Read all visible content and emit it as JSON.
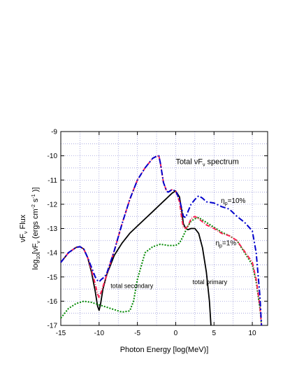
{
  "chart_data": {
    "type": "line",
    "xlabel": "Photon Energy [log(MeV)]",
    "ylabel_line1": "νF",
    "ylabel_line1_sub": "ν",
    "ylabel_line1_tail": " Flux",
    "ylabel_line2": "log",
    "ylabel_line2_sub": "10",
    "ylabel_line2_tail": "[νF",
    "ylabel_line2_sub2": "ν",
    "ylabel_line2_unit": "  (ergs cm",
    "ylabel_line2_sup1": "-2",
    "ylabel_line2_s": " s",
    "ylabel_line2_sup2": "-1",
    "ylabel_line2_close": " )]",
    "xlim": [
      -15,
      12
    ],
    "ylim": [
      -17,
      -9
    ],
    "xticks": [
      -15,
      -10,
      -5,
      0,
      5,
      10
    ],
    "yticks": [
      -17,
      -16,
      -15,
      -14,
      -13,
      -12,
      -11,
      -10,
      -9
    ],
    "grid": true,
    "annotations": {
      "total_spectrum": {
        "text": "Total νF",
        "sub": "ν",
        "tail": " spectrum",
        "x": 0,
        "y": -10.35
      },
      "eta10": {
        "text": "η",
        "sub": "p",
        "tail": "=10%",
        "x": 5.9,
        "y": -11.95
      },
      "eta1": {
        "text": "η",
        "sub": "p",
        "tail": "=1%",
        "x": 5.2,
        "y": -13.7
      },
      "secondary": {
        "text": "total  secondary",
        "x": -8.5,
        "y": -15.45
      },
      "primary": {
        "text": "total primary",
        "x": 2.2,
        "y": -15.3
      }
    },
    "series": [
      {
        "color": "#000000",
        "dash": "",
        "width": 1.8,
        "x": [
          -15,
          -14,
          -13,
          -12.5,
          -12,
          -11.5,
          -11,
          -10.5,
          -10.2,
          -10,
          -9.8,
          -9.5,
          -9,
          -8,
          -7,
          -6,
          -5,
          -4,
          -3,
          -2,
          -1.5,
          -1,
          -0.5,
          0,
          0.5,
          0.8,
          1,
          1.3,
          1.6,
          2,
          2.5,
          3,
          3.5,
          4,
          4.4,
          4.6
        ],
        "y": [
          -14.4,
          -14,
          -13.78,
          -13.75,
          -13.85,
          -14.2,
          -14.8,
          -15.6,
          -16.2,
          -16.38,
          -16.1,
          -15.5,
          -14.9,
          -14.1,
          -13.6,
          -13.2,
          -12.9,
          -12.6,
          -12.3,
          -12.0,
          -11.85,
          -11.7,
          -11.55,
          -11.45,
          -11.7,
          -12.3,
          -12.8,
          -13.0,
          -13.05,
          -13.0,
          -13.0,
          -13.2,
          -13.8,
          -14.8,
          -16.0,
          -17.0
        ]
      },
      {
        "color": "#008800",
        "dash": "2,2",
        "width": 2,
        "x": [
          -15,
          -14,
          -13,
          -12,
          -11,
          -10,
          -9,
          -8,
          -7,
          -6,
          -5.5,
          -5,
          -4,
          -3,
          -2,
          -1,
          0,
          0.5,
          1,
          1.5,
          2,
          2.5,
          3,
          4,
          5,
          6,
          7,
          8,
          9,
          10,
          10.5,
          11,
          11.2
        ],
        "y": [
          -16.7,
          -16.3,
          -16.1,
          -16.0,
          -16.05,
          -16.15,
          -16.25,
          -16.35,
          -16.45,
          -16.4,
          -16.0,
          -15.1,
          -14.0,
          -13.75,
          -13.65,
          -13.7,
          -13.7,
          -13.6,
          -13.3,
          -12.95,
          -12.7,
          -12.6,
          -12.55,
          -12.75,
          -12.95,
          -13.15,
          -13.3,
          -13.5,
          -14.0,
          -14.5,
          -15.2,
          -16.3,
          -17.0
        ]
      },
      {
        "color": "#ff2255",
        "dash": "6,2,1,2",
        "width": 2,
        "x": [
          -15,
          -14,
          -13,
          -12.5,
          -12,
          -11.5,
          -11,
          -10.5,
          -10.2,
          -10,
          -9.7,
          -9.3,
          -9,
          -8,
          -7,
          -6,
          -5,
          -4,
          -3,
          -2.5,
          -2.2,
          -2,
          -1.6,
          -1.2,
          -1,
          -0.5,
          0,
          0.5,
          0.8,
          1,
          1.3,
          1.6,
          2,
          2.5,
          3,
          4,
          5,
          6,
          7,
          8,
          9,
          10,
          10.5,
          11,
          11.2
        ],
        "y": [
          -14.4,
          -14,
          -13.78,
          -13.75,
          -13.85,
          -14.2,
          -14.7,
          -15.3,
          -15.7,
          -15.85,
          -15.6,
          -15.2,
          -14.9,
          -13.9,
          -12.8,
          -11.8,
          -11.0,
          -10.5,
          -10.1,
          -10.02,
          -10.0,
          -10.3,
          -11.1,
          -11.45,
          -11.5,
          -11.4,
          -11.45,
          -11.9,
          -12.6,
          -12.95,
          -13.0,
          -12.9,
          -12.6,
          -12.5,
          -12.6,
          -12.85,
          -13.0,
          -13.2,
          -13.3,
          -13.5,
          -13.95,
          -14.4,
          -15.1,
          -16.2,
          -17.0
        ]
      },
      {
        "color": "#0000cc",
        "dash": "8,3,2,3",
        "width": 2,
        "x": [
          -15,
          -14,
          -13,
          -12.5,
          -12,
          -11.5,
          -11,
          -10.5,
          -10.2,
          -10,
          -9.7,
          -9.3,
          -9,
          -8,
          -7,
          -6,
          -5,
          -4,
          -3,
          -2.5,
          -2.2,
          -2,
          -1.6,
          -1.2,
          -1,
          -0.5,
          0,
          0.5,
          0.8,
          1,
          1.3,
          1.6,
          2,
          2.5,
          3,
          3.5,
          4,
          5,
          6,
          7,
          8,
          9,
          10,
          10.5,
          11,
          11.2
        ],
        "y": [
          -14.4,
          -14,
          -13.78,
          -13.75,
          -13.85,
          -14.2,
          -14.6,
          -15.0,
          -15.15,
          -15.2,
          -15.1,
          -15.0,
          -14.85,
          -13.9,
          -12.8,
          -11.8,
          -11.0,
          -10.5,
          -10.1,
          -10.02,
          -10.0,
          -10.3,
          -11.1,
          -11.45,
          -11.5,
          -11.4,
          -11.45,
          -11.8,
          -12.2,
          -12.5,
          -12.55,
          -12.3,
          -12.0,
          -11.8,
          -11.65,
          -11.75,
          -11.9,
          -11.95,
          -12.1,
          -12.2,
          -12.5,
          -12.75,
          -13.1,
          -14.0,
          -15.8,
          -17.0
        ]
      }
    ]
  }
}
